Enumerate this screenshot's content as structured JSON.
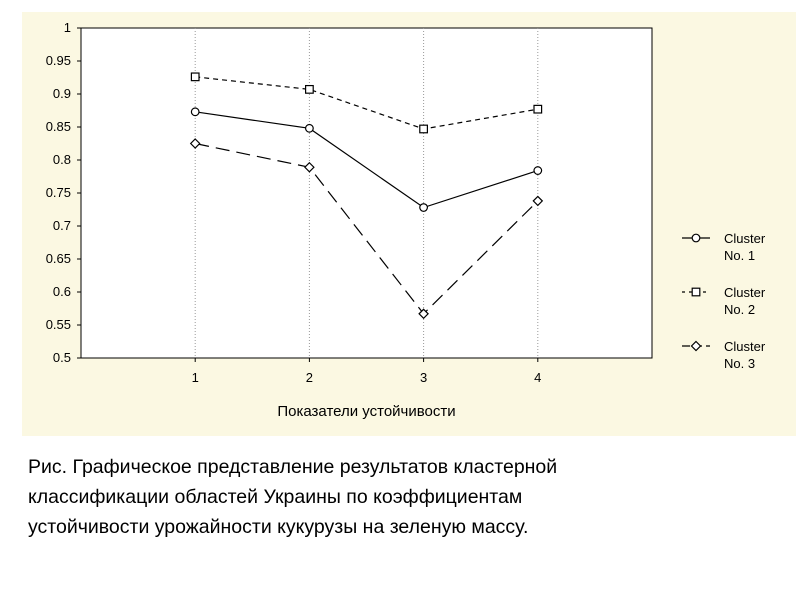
{
  "chart_data": {
    "type": "line",
    "x": [
      1,
      2,
      3,
      4
    ],
    "x_tick_labels": [
      "1",
      "2",
      "3",
      "4"
    ],
    "xlabel": "Показатели устойчивости",
    "ylabel": "",
    "ylim": [
      0.5,
      1
    ],
    "y_ticks": [
      0.5,
      0.55,
      0.6,
      0.65,
      0.7,
      0.75,
      0.8,
      0.85,
      0.9,
      0.95,
      1
    ],
    "y_tick_labels": [
      "0.5",
      "0.55",
      "0.6",
      "0.65",
      "0.7",
      "0.75",
      "0.8",
      "0.85",
      "0.9",
      "0.95",
      "1"
    ],
    "grid": true,
    "legend_position": "right",
    "series": [
      {
        "name_line1": "Cluster",
        "name_line2": "No. 1",
        "values": [
          0.873,
          0.848,
          0.728,
          0.784
        ],
        "marker": "circle",
        "line_style": "solid"
      },
      {
        "name_line1": "Cluster",
        "name_line2": "No. 2",
        "values": [
          0.926,
          0.907,
          0.847,
          0.877
        ],
        "marker": "square",
        "line_style": "short-dash"
      },
      {
        "name_line1": "Cluster",
        "name_line2": "No. 3",
        "values": [
          0.825,
          0.789,
          0.567,
          0.738
        ],
        "marker": "diamond",
        "line_style": "long-dash"
      }
    ],
    "colors": {
      "background": "#fbf8e2",
      "plot_area": "#ffffff",
      "line": "#000000",
      "grid": "#999999"
    }
  },
  "caption": {
    "line1": "Рис.  Графическое представление результатов кластерной",
    "line2": "классификации областей Украины по коэффициентам",
    "line3": "устойчивости урожайности кукурузы на зеленую массу."
  }
}
